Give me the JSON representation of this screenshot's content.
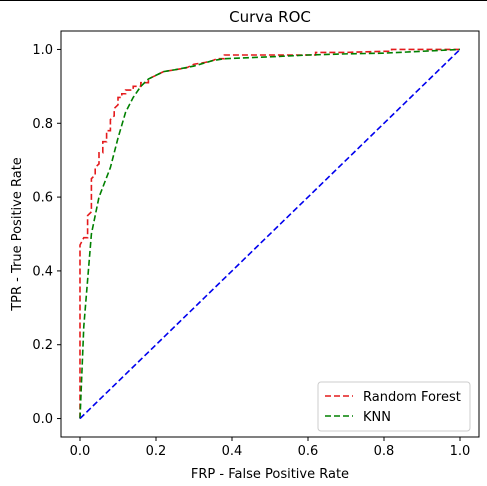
{
  "chart_data": {
    "type": "line",
    "title": "Curva ROC",
    "xlabel": "FRP - False Positive Rate",
    "ylabel": "TPR - True Positive Rate",
    "xlim": [
      -0.05,
      1.05
    ],
    "ylim": [
      -0.05,
      1.05
    ],
    "xticks": [
      "0.0",
      "0.2",
      "0.4",
      "0.6",
      "0.8",
      "1.0"
    ],
    "yticks": [
      "0.0",
      "0.2",
      "0.4",
      "0.6",
      "0.8",
      "1.0"
    ],
    "grid": false,
    "legend_position": "lower-right",
    "series": [
      {
        "name": "Random Forest",
        "color": "#e41a1c",
        "dash": "dashed",
        "x": [
          0.0,
          0.0,
          0.0,
          0.0,
          0.005,
          0.01,
          0.02,
          0.02,
          0.03,
          0.03,
          0.04,
          0.04,
          0.05,
          0.05,
          0.06,
          0.06,
          0.07,
          0.07,
          0.08,
          0.08,
          0.09,
          0.09,
          0.1,
          0.1,
          0.11,
          0.11,
          0.12,
          0.12,
          0.14,
          0.14,
          0.16,
          0.16,
          0.18,
          0.18,
          0.2,
          0.22,
          0.25,
          0.28,
          0.3,
          0.33,
          0.35,
          0.36,
          0.38,
          0.38,
          0.45,
          0.5,
          0.55,
          0.6,
          0.62,
          0.62,
          0.7,
          0.8,
          0.82,
          0.82,
          0.9,
          1.0
        ],
        "y": [
          0.0,
          0.3,
          0.46,
          0.47,
          0.48,
          0.49,
          0.49,
          0.55,
          0.56,
          0.65,
          0.66,
          0.68,
          0.69,
          0.72,
          0.72,
          0.75,
          0.75,
          0.78,
          0.78,
          0.81,
          0.82,
          0.84,
          0.85,
          0.87,
          0.87,
          0.88,
          0.88,
          0.89,
          0.89,
          0.9,
          0.9,
          0.91,
          0.91,
          0.92,
          0.93,
          0.94,
          0.945,
          0.95,
          0.96,
          0.965,
          0.97,
          0.975,
          0.975,
          0.985,
          0.985,
          0.985,
          0.985,
          0.985,
          0.985,
          0.992,
          0.992,
          0.995,
          0.995,
          1.0,
          1.0,
          1.0
        ]
      },
      {
        "name": "KNN",
        "color": "#008000",
        "dash": "dashed",
        "x": [
          0.0,
          0.01,
          0.03,
          0.05,
          0.08,
          0.1,
          0.12,
          0.14,
          0.16,
          0.18,
          0.22,
          0.25,
          0.3,
          0.35,
          0.38,
          0.5,
          0.6,
          0.7,
          0.8,
          0.9,
          1.0
        ],
        "y": [
          0.0,
          0.25,
          0.5,
          0.6,
          0.68,
          0.76,
          0.83,
          0.87,
          0.9,
          0.92,
          0.94,
          0.945,
          0.955,
          0.97,
          0.975,
          0.98,
          0.985,
          0.988,
          0.99,
          0.995,
          1.0
        ]
      },
      {
        "name": "",
        "color": "#0000ee",
        "dash": "dashed",
        "x": [
          0.0,
          1.0
        ],
        "y": [
          0.0,
          1.0
        ]
      }
    ]
  }
}
